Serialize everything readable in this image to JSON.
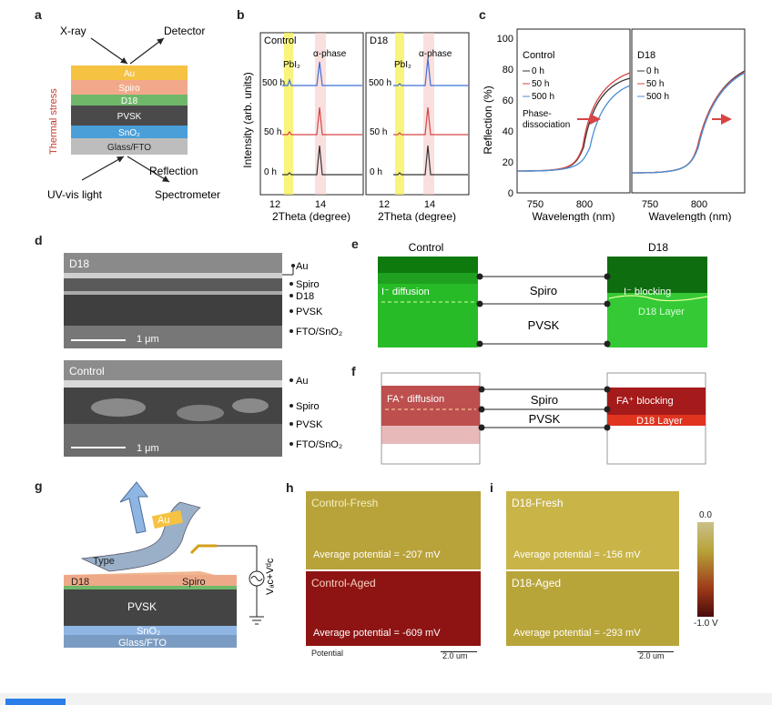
{
  "panel_a": {
    "letter": "a",
    "xray": "X-ray",
    "detector": "Detector",
    "thermal": "Thermal stress",
    "layers": [
      "Au",
      "Spiro",
      "D18",
      "PVSK",
      "SnO₂",
      "Glass/FTO"
    ],
    "reflection": "Reflection",
    "uvvis": "UV-vis light",
    "spectrometer": "Spectrometer",
    "colors": [
      "#f5c242",
      "#f2a98b",
      "#6fb86a",
      "#4a4a4a",
      "#4a9fd8",
      "#bdbdbd"
    ]
  },
  "panel_b": {
    "letter": "b",
    "ylabel": "Intensity (arb. units)",
    "xlabel": "2Theta (degree)",
    "plots": [
      {
        "title": "Control",
        "ticks": [
          "12",
          "14"
        ],
        "pbi2": "PbI₂",
        "alpha": "α-phase",
        "times": [
          "500 h",
          "50 h",
          "0 h"
        ]
      },
      {
        "title": "D18",
        "ticks": [
          "12",
          "14"
        ],
        "pbi2": "PbI₂",
        "alpha": "α-phase",
        "times": [
          "500 h",
          "50 h",
          "0 h"
        ]
      }
    ],
    "series_colors": [
      "#3d6fd6",
      "#d64545",
      "#333333"
    ]
  },
  "panel_c": {
    "letter": "c",
    "ylabel": "Reflection (%)",
    "yticks": [
      "0",
      "20",
      "40",
      "60",
      "80",
      "100"
    ],
    "xlabel": "Wavelength (nm)",
    "xticks": [
      "750",
      "800"
    ],
    "plots": [
      {
        "title": "Control",
        "annotation": "Phase-dissociation",
        "legend": [
          "0 h",
          "50 h",
          "500 h"
        ]
      },
      {
        "title": "D18",
        "legend": [
          "0 h",
          "50 h",
          "500 h"
        ]
      }
    ],
    "series_colors": [
      "#333333",
      "#d64545",
      "#4a8fd6"
    ]
  },
  "panel_d": {
    "letter": "d",
    "top": {
      "label": "D18",
      "scale": "1 μm",
      "layers": [
        "Au",
        "Spiro",
        "D18",
        "PVSK",
        "FTO/SnO₂"
      ]
    },
    "bottom": {
      "label": "Control",
      "scale": "1 μm",
      "layers": [
        "Au",
        "Spiro",
        "PVSK",
        "FTO/SnO₂"
      ]
    }
  },
  "panel_e": {
    "letter": "e",
    "control": "Control",
    "d18": "D18",
    "left_text": "I⁻ diffusion",
    "right_text": "I⁻ blocking",
    "right_layer": "D18 Layer",
    "mid": [
      "Spiro",
      "PVSK"
    ]
  },
  "panel_f": {
    "letter": "f",
    "left_text": "FA⁺ diffusion",
    "right_text": "FA⁺ blocking",
    "right_layer": "D18 Layer",
    "mid": [
      "Spiro",
      "PVSK"
    ]
  },
  "panel_g": {
    "letter": "g",
    "au": "Au",
    "type": "Type",
    "d18": "D18",
    "spiro": "Spiro",
    "pvsk": "PVSK",
    "sno2": "SnO₂",
    "glass": "Glass/FTO",
    "voltage": "Vₐc+Vᵈc"
  },
  "panel_h": {
    "letter": "h",
    "fresh": {
      "title": "Control-Fresh",
      "avg": "Average potential = -207 mV"
    },
    "aged": {
      "title": "Control-Aged",
      "avg": "Average potential = -609 mV"
    },
    "potential": "Potential",
    "scale": "2.0 um"
  },
  "panel_i": {
    "letter": "i",
    "fresh": {
      "title": "D18-Fresh",
      "avg": "Average potential = -156 mV"
    },
    "aged": {
      "title": "D18-Aged",
      "avg": "Average potential = -293 mV"
    },
    "scale": "2.0 um",
    "colorbar_max": "0.0",
    "colorbar_min": "-1.0 V"
  }
}
